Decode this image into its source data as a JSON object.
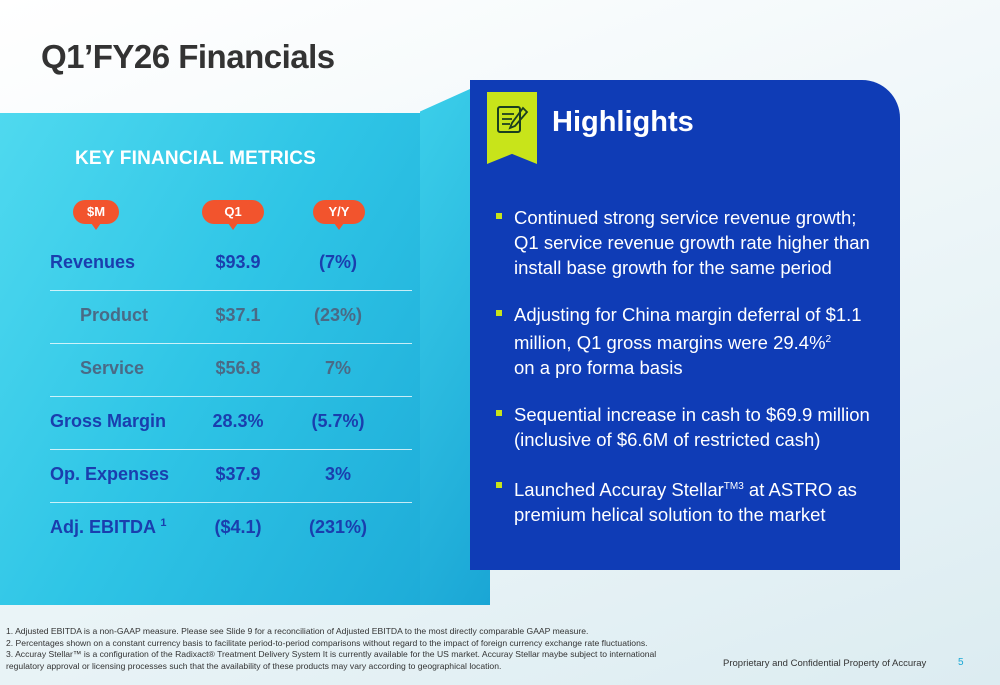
{
  "slide": {
    "title": "Q1’FY26 Financials",
    "page_number": "5",
    "footer_text": "Proprietary and Confidential Property of Accuray"
  },
  "metrics": {
    "heading": "KEY FINANCIAL METRICS",
    "column_headers": [
      "$M",
      "Q1",
      "Y/Y"
    ],
    "rows": [
      {
        "label": "Revenues",
        "q1": "$93.9",
        "yy": "(7%)",
        "sub": false
      },
      {
        "label": "Product",
        "q1": "$37.1",
        "yy": "(23%)",
        "sub": true
      },
      {
        "label": "Service",
        "q1": "$56.8",
        "yy": "7%",
        "sub": true
      },
      {
        "label": "Gross Margin",
        "q1": "28.3%",
        "yy": "(5.7%)",
        "sub": false
      },
      {
        "label": "Op. Expenses",
        "q1": "$37.9",
        "yy": "3%",
        "sub": false
      },
      {
        "label": "Adj. EBITDA",
        "label_sup": "1",
        "q1": "($4.1)",
        "yy": "(231%)",
        "sub": false
      }
    ]
  },
  "highlights": {
    "title": "Highlights",
    "icon": "notepad-pencil-icon",
    "bullets": [
      {
        "text": "Continued strong service revenue growth; Q1 service revenue growth rate higher than install base growth for the same period"
      },
      {
        "text": "Adjusting for China margin deferral of $1.1 million, Q1 gross margins were 29.4%",
        "sup": "2",
        "text_after": "on a pro forma basis"
      },
      {
        "text": "Sequential increase in cash to $69.9 million (inclusive of $6.6M of restricted cash)"
      },
      {
        "text": "Launched Accuray Stellar",
        "sup": "TM3",
        "text_after": " at ASTRO as premium helical solution to the market"
      }
    ]
  },
  "footnotes": [
    "1. Adjusted EBITDA is a non-GAAP measure.  Please see Slide 9 for a reconciliation of Adjusted EBITDA to the most directly comparable GAAP measure.",
    "2. Percentages shown on a constant currency basis to facilitate period-to-period comparisons without regard to the impact of foreign currency exchange rate fluctuations.",
    "3. Accuray Stellar™ is a configuration of the Radixact® Treatment Delivery System It is currently available for the US market. Accuray Stellar maybe subject to international",
    "regulatory approval or licensing processes such that the availability of these products may vary according to geographical location."
  ],
  "colors": {
    "accent_orange": "#f2542d",
    "panel_blue": "#0f3cb6",
    "accent_lime": "#c8e41a",
    "teal": "#2fc5e6"
  }
}
